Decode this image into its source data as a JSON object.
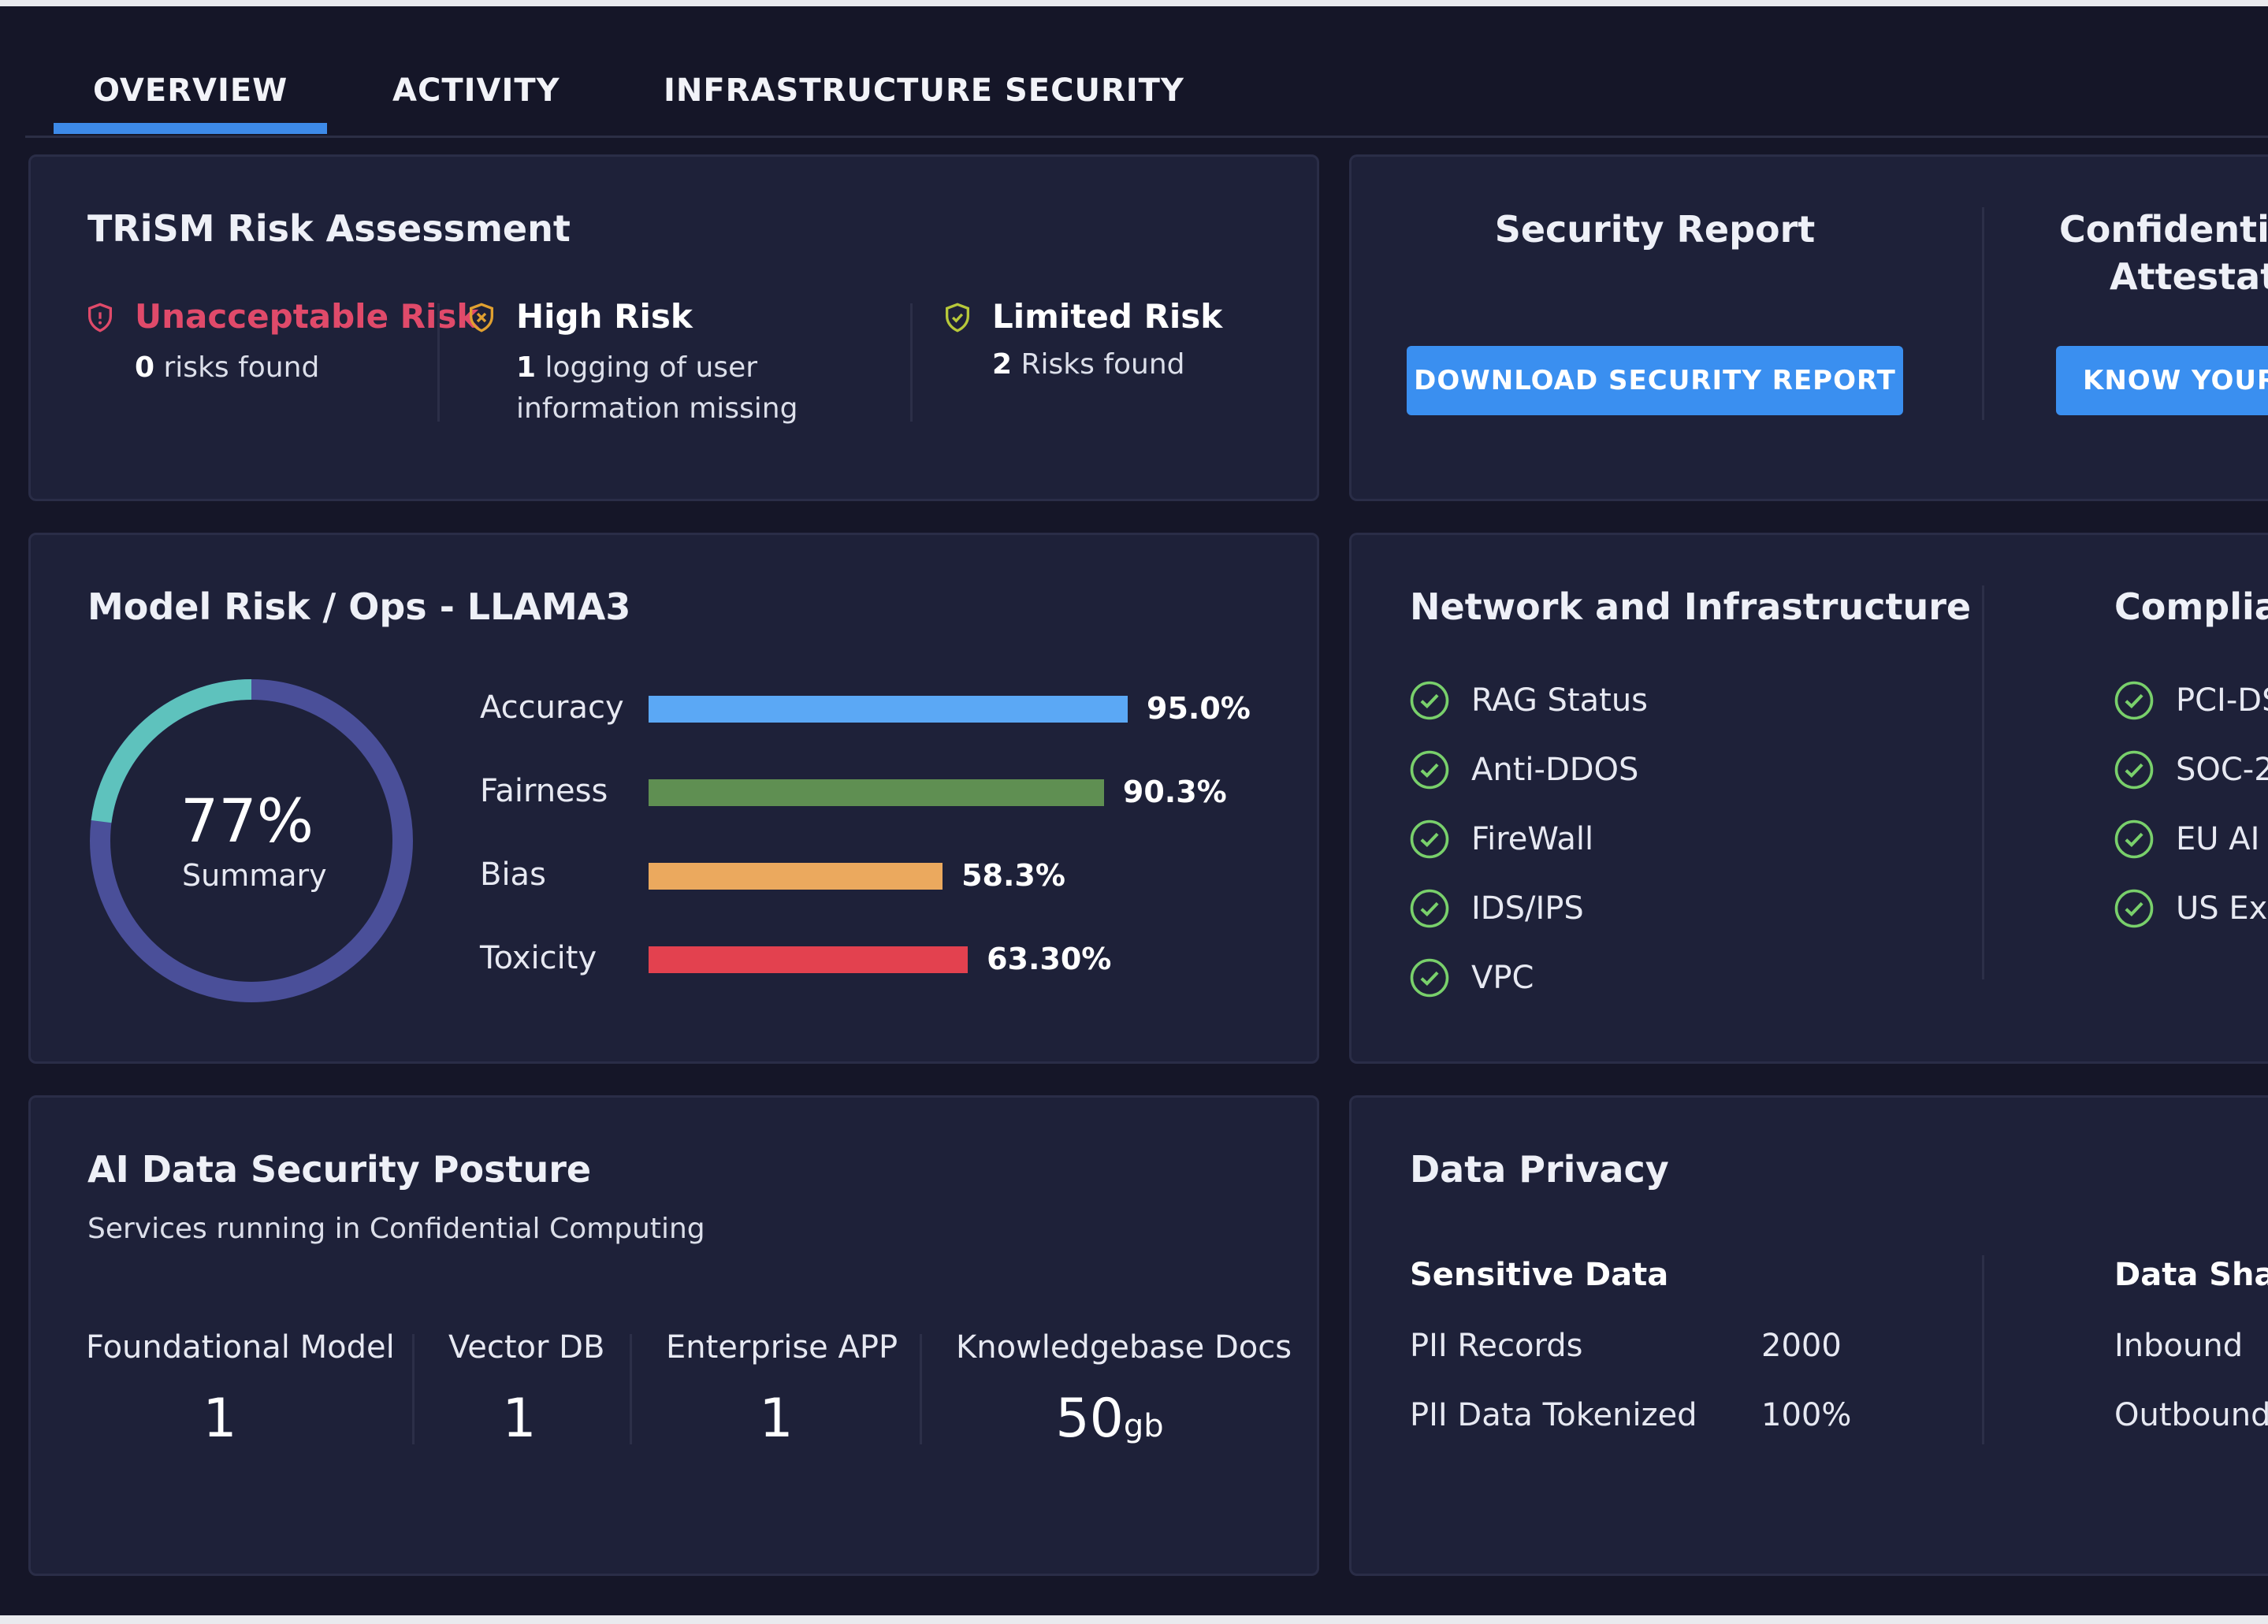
{
  "tabs": [
    {
      "label": "OVERVIEW"
    },
    {
      "label": "ACTIVITY"
    },
    {
      "label": "INFRASTRUCTURE SECURITY"
    }
  ],
  "risk_card": {
    "title": "TRiSM Risk Assessment",
    "columns": [
      {
        "label": "Unacceptable Risk",
        "count": "0",
        "detail": " risks found",
        "detail2": "",
        "color": "#e04a6a"
      },
      {
        "label": "High Risk",
        "count": "1",
        "detail": " logging of user",
        "detail2": "information missing",
        "color": "#e0a030"
      },
      {
        "label": "Limited Risk",
        "count": "2",
        "detail": " Risks found",
        "detail2": "",
        "color": "#b7c83a"
      }
    ]
  },
  "report_card": {
    "security_title": "Security Report",
    "download_button": "DOWNLOAD SECURITY REPORT",
    "attest_title_line1": "Confidentia",
    "attest_title_line2": "Attestati",
    "know_button": "KNOW  YOUR"
  },
  "model_card": {
    "title": "Model Risk / Ops -  LLAMA3",
    "summary_value": "77%",
    "summary_label": "Summary",
    "summary_fraction": 0.77,
    "metrics": [
      {
        "label": "Accuracy",
        "value_text": "95.0%",
        "value": 95.0,
        "color": "#5ba8f5"
      },
      {
        "label": "Fairness",
        "value_text": "90.3%",
        "value": 90.3,
        "color": "#5f8f52"
      },
      {
        "label": "Bias",
        "value_text": "58.3%",
        "value": 58.3,
        "color": "#eba95e"
      },
      {
        "label": "Toxicity",
        "value_text": "63.30%",
        "value": 63.3,
        "color": "#e3414f"
      }
    ],
    "ring_colors": {
      "track": "#4a4f99",
      "progress": "#5ec2bd"
    }
  },
  "network_card": {
    "title": "Network and Infrastructure",
    "items": [
      "RAG Status",
      "Anti-DDOS",
      "FireWall",
      "IDS/IPS",
      "VPC"
    ],
    "compliance_title": "Complia",
    "compliance_items": [
      "PCI-DS",
      "SOC-2",
      "EU AI A",
      "US Exe"
    ]
  },
  "ai_data_card": {
    "title": "AI Data Security Posture",
    "subtitle": "Services running in Confidential Computing",
    "stats": [
      {
        "label": "Foundational Model",
        "value": "1",
        "unit": ""
      },
      {
        "label": "Vector DB",
        "value": "1",
        "unit": ""
      },
      {
        "label": "Enterprise APP",
        "value": "1",
        "unit": ""
      },
      {
        "label": "Knowledgebase Docs",
        "value": "50",
        "unit": "gb"
      }
    ]
  },
  "privacy_card": {
    "title": "Data Privacy",
    "sensitive_heading": "Sensitive Data",
    "rows": [
      {
        "key": "PII Records",
        "value": "2000"
      },
      {
        "key": "PII Data Tokenized",
        "value": "100%"
      }
    ],
    "sharing_heading": "Data Shar",
    "sharing_rows": [
      "Inbound",
      "Outbound"
    ]
  }
}
